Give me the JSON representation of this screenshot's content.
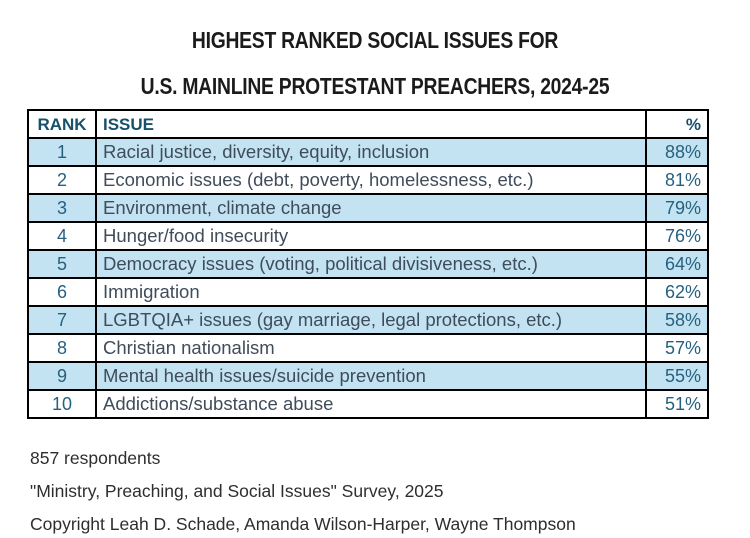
{
  "title": {
    "line1": "HIGHEST RANKED SOCIAL ISSUES FOR",
    "line2": "U.S. MAINLINE PROTESTANT PREACHERS, 2024-25"
  },
  "chart_data": {
    "type": "table",
    "title": "HIGHEST RANKED SOCIAL ISSUES FOR U.S. MAINLINE PROTESTANT PREACHERS, 2024-25",
    "columns": [
      "RANK",
      "ISSUE",
      "%"
    ],
    "rows": [
      {
        "rank": "1",
        "issue": "Racial justice, diversity, equity, inclusion",
        "percent": "88%",
        "value": 88
      },
      {
        "rank": "2",
        "issue": "Economic issues (debt, poverty, homelessness, etc.)",
        "percent": "81%",
        "value": 81
      },
      {
        "rank": "3",
        "issue": "Environment, climate change",
        "percent": "79%",
        "value": 79
      },
      {
        "rank": "4",
        "issue": "Hunger/food insecurity",
        "percent": "76%",
        "value": 76
      },
      {
        "rank": "5",
        "issue": "Democracy issues (voting, political divisiveness, etc.)",
        "percent": "64%",
        "value": 64
      },
      {
        "rank": "6",
        "issue": "Immigration",
        "percent": "62%",
        "value": 62
      },
      {
        "rank": "7",
        "issue": "LGBTQIA+ issues (gay marriage, legal protections, etc.)",
        "percent": "58%",
        "value": 58
      },
      {
        "rank": "8",
        "issue": "Christian nationalism",
        "percent": "57%",
        "value": 57
      },
      {
        "rank": "9",
        "issue": "Mental health issues/suicide prevention",
        "percent": "55%",
        "value": 55
      },
      {
        "rank": "10",
        "issue": "Addictions/substance abuse",
        "percent": "51%",
        "value": 51
      }
    ],
    "layout_hints": {
      "row_highlight": "odd-numbered ranks shaded light blue",
      "percent_align": "right",
      "grid": "black borders around every cell",
      "legend": "none"
    }
  },
  "footer": {
    "line1": "857 respondents",
    "line2": "\"Ministry, Preaching, and Social Issues\" Survey, 2025",
    "line3": "Copyright Leah D. Schade, Amanda Wilson-Harper, Wayne Thompson"
  },
  "colors": {
    "highlight-bg": "#c3e3f2",
    "header-text": "#17506b",
    "number-text": "#26607f",
    "issue-text": "#3f4c5a",
    "title-text": "#1b1b1b",
    "footer-text": "#2e2e2e",
    "border": "#000000",
    "page-bg": "#ffffff"
  }
}
